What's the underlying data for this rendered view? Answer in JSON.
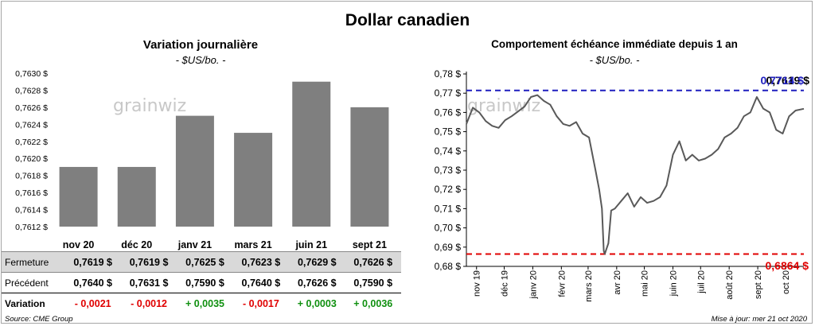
{
  "title": "Dollar canadien",
  "left": {
    "title": "Variation  journalière",
    "unit": "- $US/bo. -",
    "watermark": "grainwiz"
  },
  "right": {
    "title": "Comportement échéance immédiate depuis 1 an",
    "unit": "- $US/bo. -",
    "watermark": "grainwiz"
  },
  "table": {
    "rows": [
      {
        "label": "Fermeture",
        "cells": [
          "0,7619 $",
          "0,7619 $",
          "0,7625 $",
          "0,7623 $",
          "0,7629 $",
          "0,7626 $"
        ]
      },
      {
        "label": "Précédent",
        "cells": [
          "0,7640 $",
          "0,7631 $",
          "0,7590 $",
          "0,7640 $",
          "0,7626 $",
          "0,7590 $"
        ]
      },
      {
        "label": "Variation",
        "cells": [
          "- 0,0021",
          "- 0,0012",
          "+ 0,0035",
          "- 0,0017",
          "+ 0,0003",
          "+ 0,0036"
        ]
      }
    ]
  },
  "footer": {
    "source": "Source: CME Group",
    "updated": "Mise à jour: mer 21 oct 2020"
  },
  "colors": {
    "bar": "#7f7f7f",
    "line": "#595959",
    "high_line": "#1f1fbf",
    "low_line": "#e00000",
    "negative": "#e00000",
    "positive": "#109010"
  },
  "chart_data": [
    {
      "type": "bar",
      "title": "Variation  journalière",
      "subtitle": "- $US/bo. -",
      "categories": [
        "nov 20",
        "déc 20",
        "janv 21",
        "mars 21",
        "juin 21",
        "sept 21"
      ],
      "values": [
        0.7619,
        0.7619,
        0.7625,
        0.7623,
        0.7629,
        0.7626
      ],
      "ylim": [
        0.7612,
        0.763
      ],
      "yticks": [
        "0,7612 $",
        "0,7614 $",
        "0,7616 $",
        "0,7618 $",
        "0,7620 $",
        "0,7622 $",
        "0,7624 $",
        "0,7626 $",
        "0,7628 $",
        "0,7630 $"
      ],
      "grid": false,
      "legend": "none"
    },
    {
      "type": "line",
      "title": "Comportement échéance immédiate depuis 1 an",
      "subtitle": "- $US/bo. -",
      "x_start": "2019-10-21",
      "x_end": "2020-10-21",
      "xticks": [
        "nov 19",
        "déc 19",
        "janv 20",
        "févr 20",
        "mars 20",
        "avr 20",
        "mai 20",
        "juin 20",
        "juil 20",
        "août 20",
        "sept 20",
        "oct 20"
      ],
      "xtick_dates": [
        "2019-11-01",
        "2019-12-01",
        "2020-01-01",
        "2020-02-01",
        "2020-03-01",
        "2020-04-01",
        "2020-05-01",
        "2020-06-01",
        "2020-07-01",
        "2020-08-01",
        "2020-09-01",
        "2020-10-01"
      ],
      "ylim": [
        0.68,
        0.78
      ],
      "yticks": [
        "0,68 $",
        "0,69 $",
        "0,70 $",
        "0,71 $",
        "0,72 $",
        "0,73 $",
        "0,74 $",
        "0,75 $",
        "0,76 $",
        "0,77 $",
        "0,78 $"
      ],
      "points": [
        [
          "2019-10-21",
          0.754
        ],
        [
          "2019-10-28",
          0.7625
        ],
        [
          "2019-11-04",
          0.76
        ],
        [
          "2019-11-11",
          0.7555
        ],
        [
          "2019-11-18",
          0.753
        ],
        [
          "2019-11-25",
          0.752
        ],
        [
          "2019-12-02",
          0.756
        ],
        [
          "2019-12-09",
          0.758
        ],
        [
          "2019-12-16",
          0.7605
        ],
        [
          "2019-12-23",
          0.763
        ],
        [
          "2019-12-30",
          0.768
        ],
        [
          "2020-01-06",
          0.769
        ],
        [
          "2020-01-13",
          0.766
        ],
        [
          "2020-01-20",
          0.764
        ],
        [
          "2020-01-27",
          0.758
        ],
        [
          "2020-02-03",
          0.754
        ],
        [
          "2020-02-10",
          0.753
        ],
        [
          "2020-02-17",
          0.755
        ],
        [
          "2020-02-24",
          0.749
        ],
        [
          "2020-03-02",
          0.747
        ],
        [
          "2020-03-09",
          0.73
        ],
        [
          "2020-03-13",
          0.72
        ],
        [
          "2020-03-16",
          0.71
        ],
        [
          "2020-03-18",
          0.688
        ],
        [
          "2020-03-19",
          0.6864
        ],
        [
          "2020-03-23",
          0.692
        ],
        [
          "2020-03-26",
          0.709
        ],
        [
          "2020-03-30",
          0.71
        ],
        [
          "2020-04-06",
          0.714
        ],
        [
          "2020-04-13",
          0.718
        ],
        [
          "2020-04-20",
          0.711
        ],
        [
          "2020-04-27",
          0.716
        ],
        [
          "2020-05-04",
          0.713
        ],
        [
          "2020-05-11",
          0.714
        ],
        [
          "2020-05-18",
          0.716
        ],
        [
          "2020-05-25",
          0.722
        ],
        [
          "2020-06-01",
          0.738
        ],
        [
          "2020-06-08",
          0.745
        ],
        [
          "2020-06-15",
          0.735
        ],
        [
          "2020-06-22",
          0.738
        ],
        [
          "2020-06-29",
          0.735
        ],
        [
          "2020-07-06",
          0.736
        ],
        [
          "2020-07-13",
          0.738
        ],
        [
          "2020-07-20",
          0.741
        ],
        [
          "2020-07-27",
          0.747
        ],
        [
          "2020-08-03",
          0.749
        ],
        [
          "2020-08-10",
          0.752
        ],
        [
          "2020-08-17",
          0.758
        ],
        [
          "2020-08-24",
          0.76
        ],
        [
          "2020-08-31",
          0.768
        ],
        [
          "2020-09-07",
          0.762
        ],
        [
          "2020-09-14",
          0.76
        ],
        [
          "2020-09-21",
          0.751
        ],
        [
          "2020-09-28",
          0.749
        ],
        [
          "2020-10-05",
          0.758
        ],
        [
          "2020-10-12",
          0.761
        ],
        [
          "2020-10-21",
          0.7619
        ]
      ],
      "high": 0.7714,
      "low": 0.6864,
      "high_label": "0,7714 $",
      "low_label": "0,6864 $",
      "last_label": "0,7619 $",
      "grid": false,
      "legend": "none"
    }
  ]
}
